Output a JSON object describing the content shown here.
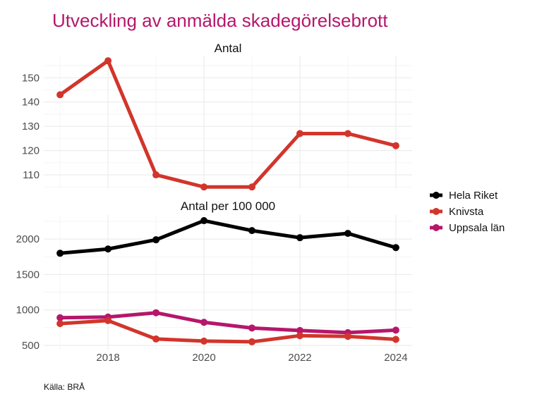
{
  "chart_data": {
    "type": "line",
    "title": "Utveckling av anmälda skadegörelsebrott",
    "caption": "Källa: BRÅ",
    "legend_position": "right",
    "grid": true,
    "x": [
      2017,
      2018,
      2019,
      2020,
      2021,
      2022,
      2023,
      2024
    ],
    "x_ticks": [
      2018,
      2020,
      2022,
      2024
    ],
    "x_tick_labels": [
      "2018",
      "2020",
      "2022",
      "2024"
    ],
    "legend": [
      {
        "name": "Hela Riket",
        "color": "#000000"
      },
      {
        "name": "Knivsta",
        "color": "#d2352b"
      },
      {
        "name": "Uppsala län",
        "color": "#b5176b"
      }
    ],
    "panels": [
      {
        "title": "Antal",
        "ylim": [
          104.2,
          158.8
        ],
        "y_ticks": [
          110,
          120,
          130,
          140,
          150
        ],
        "y_tick_labels": [
          "110",
          "120",
          "130",
          "140",
          "150"
        ],
        "y_minor": [
          105,
          115,
          125,
          135,
          145,
          155
        ],
        "series": [
          {
            "name": "Knivsta",
            "color": "#d2352b",
            "values": [
              143,
              157,
              110,
              105,
              105,
              127,
              127,
              122
            ]
          }
        ]
      },
      {
        "title": "Antal per 100 000",
        "ylim": [
          430,
          2340
        ],
        "y_ticks": [
          500,
          1000,
          1500,
          2000
        ],
        "y_tick_labels": [
          "500",
          "1000",
          "1500",
          "2000"
        ],
        "y_minor": [
          750,
          1250,
          1750,
          2250
        ],
        "series": [
          {
            "name": "Hela Riket",
            "color": "#000000",
            "values": [
              1800,
              1860,
              1990,
              2260,
              2120,
              2020,
              2080,
              1880
            ]
          },
          {
            "name": "Uppsala län",
            "color": "#b5176b",
            "values": [
              890,
              900,
              960,
              825,
              745,
              710,
              680,
              715
            ]
          },
          {
            "name": "Knivsta",
            "color": "#d2352b",
            "values": [
              807,
              850,
              590,
              560,
              550,
              637,
              627,
              584
            ]
          }
        ]
      }
    ]
  }
}
